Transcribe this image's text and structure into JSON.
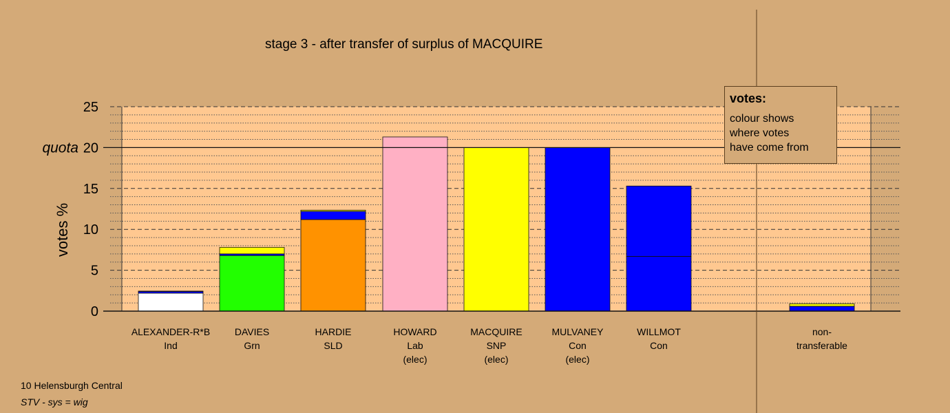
{
  "chart_data": {
    "type": "bar",
    "stacked": true,
    "title": "stage 3 - after transfer of surplus of MACQUIRE",
    "ylabel": "votes %",
    "ylim": [
      0,
      25
    ],
    "yticks": [
      0,
      5,
      10,
      15,
      20,
      25
    ],
    "quota": {
      "value": 20,
      "label": "quota"
    },
    "grid": true,
    "categories": [
      {
        "lines": [
          "ALEXANDER-R*B",
          "Ind"
        ]
      },
      {
        "lines": [
          "DAVIES",
          "Grn"
        ]
      },
      {
        "lines": [
          "HARDIE",
          "SLD"
        ]
      },
      {
        "lines": [
          "HOWARD",
          "Lab",
          "(elec)"
        ]
      },
      {
        "lines": [
          "MACQUIRE",
          "SNP",
          "(elec)"
        ]
      },
      {
        "lines": [
          "MULVANEY",
          "Con",
          "(elec)"
        ]
      },
      {
        "lines": [
          "WILLMOT",
          "Con"
        ]
      },
      {
        "lines": [
          "non-",
          "transferable"
        ]
      }
    ],
    "bars": [
      {
        "segments": [
          {
            "value": 2.2,
            "color": "#ffffff"
          },
          {
            "value": 0.2,
            "color": "#0000ff"
          },
          {
            "value": 0.05,
            "color": "#ffff00"
          }
        ]
      },
      {
        "segments": [
          {
            "value": 6.8,
            "color": "#22ff00"
          },
          {
            "value": 0.2,
            "color": "#0000ff"
          },
          {
            "value": 0.8,
            "color": "#ffff00"
          }
        ]
      },
      {
        "segments": [
          {
            "value": 11.2,
            "color": "#ff9200"
          },
          {
            "value": 1.0,
            "color": "#0000ff"
          },
          {
            "value": 0.15,
            "color": "#ffff00"
          }
        ]
      },
      {
        "segments": [
          {
            "value": 21.3,
            "color": "#ffb0c4"
          }
        ]
      },
      {
        "segments": [
          {
            "value": 20.0,
            "color": "#ffff00"
          }
        ]
      },
      {
        "segments": [
          {
            "value": 20.0,
            "color": "#0000ff"
          }
        ]
      },
      {
        "segments": [
          {
            "value": 6.7,
            "color": "#0000ff"
          },
          {
            "value": 8.6,
            "color": "#0000ff"
          }
        ]
      },
      {
        "segments": [
          {
            "value": 0.6,
            "color": "#0000ff"
          },
          {
            "value": 0.3,
            "color": "#ffff00"
          }
        ]
      }
    ],
    "legend": {
      "title": "votes:",
      "lines": [
        "colour shows",
        "where votes",
        "have come from"
      ],
      "position": "top-right"
    }
  },
  "footer": {
    "line1": "10 Helensburgh Central",
    "line2": "STV - sys = wig"
  },
  "colors": {
    "background": "#d4aa78",
    "plot_area": "#ffc890"
  }
}
